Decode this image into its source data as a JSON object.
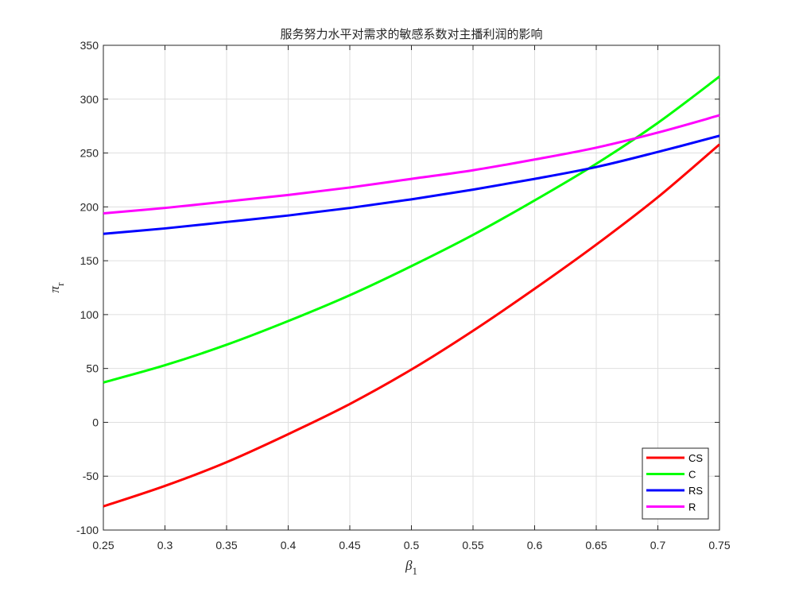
{
  "chart_data": {
    "type": "line",
    "title": "服务努力水平对需求的敏感系数对主播利润的影响",
    "xlabel": "β",
    "xlabel_sub": "1",
    "ylabel": "π",
    "ylabel_sub": "r",
    "xlim": [
      0.25,
      0.75
    ],
    "ylim": [
      -100,
      350
    ],
    "xticks": [
      0.25,
      0.3,
      0.35,
      0.4,
      0.45,
      0.5,
      0.55,
      0.6,
      0.65,
      0.7,
      0.75
    ],
    "xtick_labels": [
      "0.25",
      "0.3",
      "0.35",
      "0.4",
      "0.45",
      "0.5",
      "0.55",
      "0.6",
      "0.65",
      "0.7",
      "0.75"
    ],
    "yticks": [
      -100,
      -50,
      0,
      50,
      100,
      150,
      200,
      250,
      300,
      350
    ],
    "ytick_labels": [
      "-100",
      "-50",
      "0",
      "50",
      "100",
      "150",
      "200",
      "250",
      "300",
      "350"
    ],
    "grid": true,
    "legend_position": "bottom-right",
    "x": [
      0.25,
      0.3,
      0.35,
      0.4,
      0.45,
      0.5,
      0.55,
      0.6,
      0.65,
      0.7,
      0.75
    ],
    "series": [
      {
        "name": "CS",
        "color": "#ff0000",
        "values": [
          -78,
          -59,
          -37,
          -11,
          17,
          49,
          85,
          124,
          165,
          209,
          258
        ]
      },
      {
        "name": "C",
        "color": "#00ff00",
        "values": [
          37,
          53,
          72,
          94,
          118,
          145,
          174,
          206,
          240,
          278,
          321
        ]
      },
      {
        "name": "RS",
        "color": "#0000ff",
        "values": [
          175,
          180,
          186,
          192,
          199,
          207,
          216,
          226,
          237,
          251,
          266
        ]
      },
      {
        "name": "R",
        "color": "#ff00ff",
        "values": [
          194,
          199,
          205,
          211,
          218,
          226,
          234,
          244,
          255,
          269,
          285
        ]
      }
    ]
  }
}
